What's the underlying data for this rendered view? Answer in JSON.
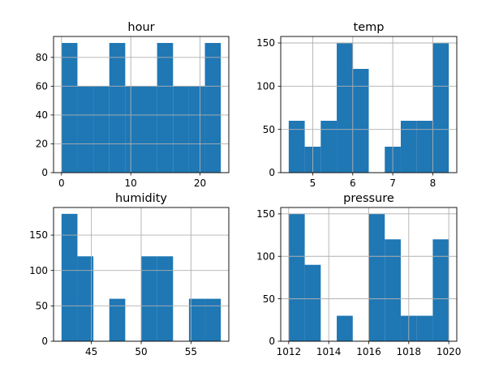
{
  "chart_data": [
    {
      "type": "bar",
      "title": "hour",
      "bins": [
        [
          0,
          2.3
        ],
        [
          2.3,
          4.6
        ],
        [
          4.6,
          6.9
        ],
        [
          6.9,
          9.2
        ],
        [
          9.2,
          11.5
        ],
        [
          11.5,
          13.8
        ],
        [
          13.8,
          16.1
        ],
        [
          16.1,
          18.4
        ],
        [
          18.4,
          20.7
        ],
        [
          20.7,
          23
        ]
      ],
      "values": [
        90,
        60,
        60,
        90,
        60,
        60,
        90,
        60,
        60,
        90
      ],
      "xlim": [
        -1.15,
        24.15
      ],
      "ylim": [
        0,
        94.5
      ],
      "xticks": [
        0,
        10,
        20
      ],
      "xtick_labels": [
        "0",
        "10",
        "20"
      ],
      "yticks": [
        0,
        20,
        40,
        60,
        80
      ],
      "ytick_labels": [
        "0",
        "20",
        "40",
        "60",
        "80"
      ],
      "grid": true,
      "color": "#1f77b4"
    },
    {
      "type": "bar",
      "title": "temp",
      "bins": [
        [
          4.4,
          4.8
        ],
        [
          4.8,
          5.2
        ],
        [
          5.2,
          5.6
        ],
        [
          5.6,
          6.0
        ],
        [
          6.0,
          6.4
        ],
        [
          6.4,
          6.8
        ],
        [
          6.8,
          7.2
        ],
        [
          7.2,
          7.6
        ],
        [
          7.6,
          8.0
        ],
        [
          8.0,
          8.4
        ]
      ],
      "values": [
        60,
        30,
        60,
        150,
        120,
        0,
        30,
        60,
        60,
        150
      ],
      "xlim": [
        4.2,
        8.6
      ],
      "ylim": [
        0,
        157.5
      ],
      "xticks": [
        5,
        6,
        7,
        8
      ],
      "xtick_labels": [
        "5",
        "6",
        "7",
        "8"
      ],
      "yticks": [
        0,
        50,
        100,
        150
      ],
      "ytick_labels": [
        "0",
        "50",
        "100",
        "150"
      ],
      "grid": true,
      "color": "#1f77b4"
    },
    {
      "type": "bar",
      "title": "humidity",
      "bins": [
        [
          42,
          43.6
        ],
        [
          43.6,
          45.2
        ],
        [
          45.2,
          46.8
        ],
        [
          46.8,
          48.4
        ],
        [
          48.4,
          50
        ],
        [
          50,
          51.6
        ],
        [
          51.6,
          53.2
        ],
        [
          53.2,
          54.8
        ],
        [
          54.8,
          56.4
        ],
        [
          56.4,
          58
        ]
      ],
      "values": [
        180,
        120,
        0,
        60,
        0,
        120,
        120,
        0,
        60,
        60
      ],
      "xlim": [
        41.2,
        58.8
      ],
      "ylim": [
        0,
        189
      ],
      "xticks": [
        45,
        50,
        55
      ],
      "xtick_labels": [
        "45",
        "50",
        "55"
      ],
      "yticks": [
        0,
        50,
        100,
        150
      ],
      "ytick_labels": [
        "0",
        "50",
        "100",
        "150"
      ],
      "grid": true,
      "color": "#1f77b4"
    },
    {
      "type": "bar",
      "title": "pressure",
      "bins": [
        [
          1012,
          1012.8
        ],
        [
          1012.8,
          1013.6
        ],
        [
          1013.6,
          1014.4
        ],
        [
          1014.4,
          1015.2
        ],
        [
          1015.2,
          1016
        ],
        [
          1016,
          1016.8
        ],
        [
          1016.8,
          1017.6
        ],
        [
          1017.6,
          1018.4
        ],
        [
          1018.4,
          1019.2
        ],
        [
          1019.2,
          1020
        ]
      ],
      "values": [
        150,
        90,
        0,
        30,
        0,
        150,
        120,
        30,
        30,
        120
      ],
      "xlim": [
        1011.6,
        1020.4
      ],
      "ylim": [
        0,
        157.5
      ],
      "xticks": [
        1012,
        1014,
        1016,
        1018,
        1020
      ],
      "xtick_labels": [
        "1012",
        "1014",
        "1016",
        "1018",
        "1020"
      ],
      "yticks": [
        0,
        50,
        100,
        150
      ],
      "ytick_labels": [
        "0",
        "50",
        "100",
        "150"
      ],
      "grid": true,
      "color": "#1f77b4"
    }
  ]
}
